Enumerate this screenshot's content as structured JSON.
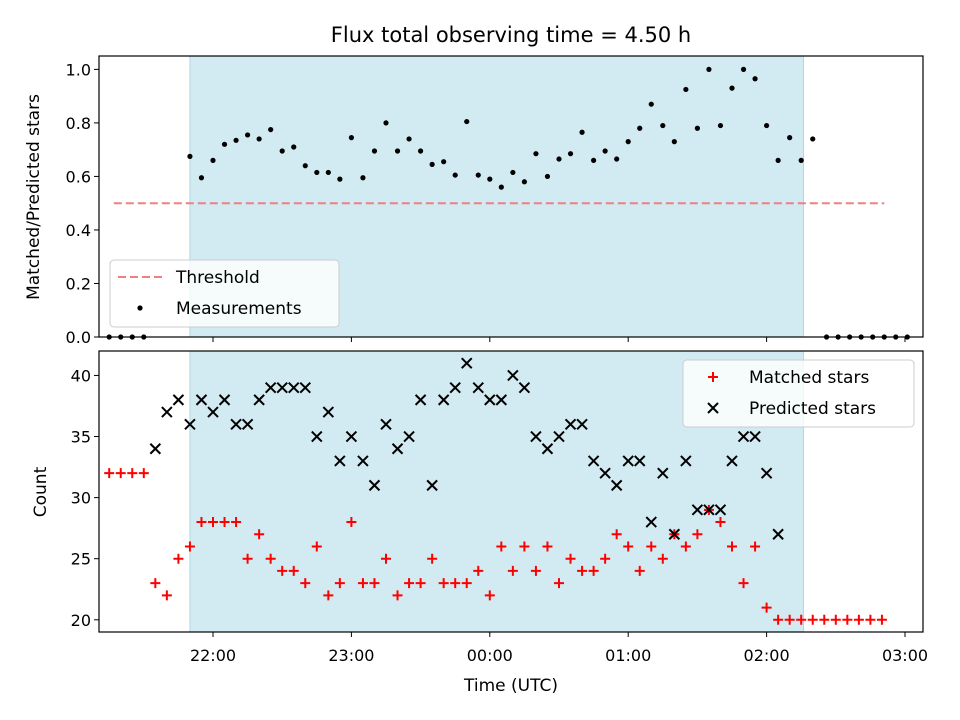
{
  "chart_data": [
    {
      "type": "scatter",
      "title": "Flux total observing time = 4.50 h",
      "xlabel": "",
      "ylabel": "Matched/Predicted stars",
      "ylim": [
        0,
        1.05
      ],
      "yticks": [
        "0.0",
        "0.2",
        "0.4",
        "0.6",
        "0.8",
        "1.0"
      ],
      "threshold": 0.5,
      "threshold_color": "#f08080",
      "shaded_color": "#add8e6",
      "shaded_span": [
        "21:50",
        "02:16"
      ],
      "legend_position": "lower-left",
      "series": [
        {
          "name": "Threshold",
          "style": "dashed-line",
          "color": "#f08080",
          "points": [
            [
              "21:17",
              0.5
            ],
            [
              "02:51",
              0.5
            ]
          ]
        },
        {
          "name": "Measurements",
          "style": "dot",
          "color": "#000000",
          "points": [
            [
              "21:15",
              0.0
            ],
            [
              "21:20",
              0.0
            ],
            [
              "21:25",
              0.0
            ],
            [
              "21:30",
              0.0
            ],
            [
              "21:50",
              0.675
            ],
            [
              "21:55",
              0.595
            ],
            [
              "22:00",
              0.66
            ],
            [
              "22:05",
              0.72
            ],
            [
              "22:10",
              0.735
            ],
            [
              "22:15",
              0.755
            ],
            [
              "22:20",
              0.74
            ],
            [
              "22:25",
              0.775
            ],
            [
              "22:30",
              0.695
            ],
            [
              "22:35",
              0.71
            ],
            [
              "22:40",
              0.64
            ],
            [
              "22:45",
              0.615
            ],
            [
              "22:50",
              0.615
            ],
            [
              "22:55",
              0.59
            ],
            [
              "23:00",
              0.745
            ],
            [
              "23:05",
              0.595
            ],
            [
              "23:10",
              0.695
            ],
            [
              "23:15",
              0.8
            ],
            [
              "23:20",
              0.695
            ],
            [
              "23:25",
              0.74
            ],
            [
              "23:30",
              0.695
            ],
            [
              "23:35",
              0.645
            ],
            [
              "23:40",
              0.655
            ],
            [
              "23:45",
              0.605
            ],
            [
              "23:50",
              0.805
            ],
            [
              "23:55",
              0.605
            ],
            [
              "00:00",
              0.59
            ],
            [
              "00:05",
              0.56
            ],
            [
              "00:10",
              0.615
            ],
            [
              "00:15",
              0.58
            ],
            [
              "00:20",
              0.685
            ],
            [
              "00:25",
              0.6
            ],
            [
              "00:30",
              0.665
            ],
            [
              "00:35",
              0.685
            ],
            [
              "00:40",
              0.765
            ],
            [
              "00:45",
              0.66
            ],
            [
              "00:50",
              0.695
            ],
            [
              "00:55",
              0.665
            ],
            [
              "01:00",
              0.73
            ],
            [
              "01:05",
              0.78
            ],
            [
              "01:10",
              0.87
            ],
            [
              "01:15",
              0.79
            ],
            [
              "01:20",
              0.73
            ],
            [
              "01:25",
              0.925
            ],
            [
              "01:30",
              0.78
            ],
            [
              "01:35",
              1.0
            ],
            [
              "01:40",
              0.79
            ],
            [
              "01:45",
              0.93
            ],
            [
              "01:50",
              1.0
            ],
            [
              "01:55",
              0.965
            ],
            [
              "02:00",
              0.79
            ],
            [
              "02:05",
              0.66
            ],
            [
              "02:10",
              0.745
            ],
            [
              "02:15",
              0.66
            ],
            [
              "02:20",
              0.74
            ],
            [
              "02:26",
              0.0
            ],
            [
              "02:31",
              0.0
            ],
            [
              "02:36",
              0.0
            ],
            [
              "02:41",
              0.0
            ],
            [
              "02:46",
              0.0
            ],
            [
              "02:51",
              0.0
            ],
            [
              "02:56",
              0.0
            ],
            [
              "03:01",
              0.0
            ]
          ]
        }
      ]
    },
    {
      "type": "scatter",
      "title": "",
      "xlabel": "Time (UTC)",
      "ylabel": "Count",
      "ylim": [
        19,
        42
      ],
      "yticks": [
        "20",
        "25",
        "30",
        "35",
        "40"
      ],
      "xticks": [
        "22:00",
        "23:00",
        "00:00",
        "01:00",
        "02:00",
        "03:00"
      ],
      "shaded_color": "#add8e6",
      "shaded_span": [
        "21:50",
        "02:16"
      ],
      "legend_position": "upper-right",
      "series": [
        {
          "name": "Matched stars",
          "style": "plus",
          "color": "#ff0000",
          "points": [
            [
              "21:15",
              32
            ],
            [
              "21:20",
              32
            ],
            [
              "21:25",
              32
            ],
            [
              "21:30",
              32
            ],
            [
              "21:35",
              23
            ],
            [
              "21:40",
              22
            ],
            [
              "21:45",
              25
            ],
            [
              "21:50",
              26
            ],
            [
              "21:55",
              28
            ],
            [
              "22:00",
              28
            ],
            [
              "22:05",
              28
            ],
            [
              "22:10",
              28
            ],
            [
              "22:15",
              25
            ],
            [
              "22:20",
              27
            ],
            [
              "22:25",
              25
            ],
            [
              "22:30",
              24
            ],
            [
              "22:35",
              24
            ],
            [
              "22:40",
              23
            ],
            [
              "22:45",
              26
            ],
            [
              "22:50",
              22
            ],
            [
              "22:55",
              23
            ],
            [
              "23:00",
              28
            ],
            [
              "23:05",
              23
            ],
            [
              "23:10",
              23
            ],
            [
              "23:15",
              25
            ],
            [
              "23:20",
              22
            ],
            [
              "23:25",
              23
            ],
            [
              "23:30",
              23
            ],
            [
              "23:35",
              25
            ],
            [
              "23:40",
              23
            ],
            [
              "23:45",
              23
            ],
            [
              "23:50",
              23
            ],
            [
              "23:55",
              24
            ],
            [
              "00:00",
              22
            ],
            [
              "00:05",
              26
            ],
            [
              "00:10",
              24
            ],
            [
              "00:15",
              26
            ],
            [
              "00:20",
              24
            ],
            [
              "00:25",
              26
            ],
            [
              "00:30",
              23
            ],
            [
              "00:35",
              25
            ],
            [
              "00:40",
              24
            ],
            [
              "00:45",
              24
            ],
            [
              "00:50",
              25
            ],
            [
              "00:55",
              27
            ],
            [
              "01:00",
              26
            ],
            [
              "01:05",
              24
            ],
            [
              "01:10",
              26
            ],
            [
              "01:15",
              25
            ],
            [
              "01:20",
              27
            ],
            [
              "01:25",
              26
            ],
            [
              "01:30",
              27
            ],
            [
              "01:35",
              29
            ],
            [
              "01:40",
              28
            ],
            [
              "01:45",
              26
            ],
            [
              "01:50",
              23
            ],
            [
              "01:55",
              26
            ],
            [
              "02:00",
              21
            ],
            [
              "02:05",
              20
            ],
            [
              "02:10",
              20
            ],
            [
              "02:15",
              20
            ],
            [
              "02:20",
              20
            ],
            [
              "02:25",
              20
            ],
            [
              "02:30",
              20
            ],
            [
              "02:35",
              20
            ],
            [
              "02:40",
              20
            ],
            [
              "02:45",
              20
            ],
            [
              "02:50",
              20
            ]
          ]
        },
        {
          "name": "Predicted stars",
          "style": "x",
          "color": "#000000",
          "points": [
            [
              "21:35",
              34
            ],
            [
              "21:40",
              37
            ],
            [
              "21:45",
              38
            ],
            [
              "21:50",
              36
            ],
            [
              "21:55",
              38
            ],
            [
              "22:00",
              37
            ],
            [
              "22:05",
              38
            ],
            [
              "22:10",
              36
            ],
            [
              "22:15",
              36
            ],
            [
              "22:20",
              38
            ],
            [
              "22:25",
              39
            ],
            [
              "22:30",
              39
            ],
            [
              "22:35",
              39
            ],
            [
              "22:40",
              39
            ],
            [
              "22:45",
              35
            ],
            [
              "22:50",
              37
            ],
            [
              "22:55",
              33
            ],
            [
              "23:00",
              35
            ],
            [
              "23:05",
              33
            ],
            [
              "23:10",
              31
            ],
            [
              "23:15",
              36
            ],
            [
              "23:20",
              34
            ],
            [
              "23:25",
              35
            ],
            [
              "23:30",
              38
            ],
            [
              "23:35",
              31
            ],
            [
              "23:40",
              38
            ],
            [
              "23:45",
              39
            ],
            [
              "23:50",
              41
            ],
            [
              "23:55",
              39
            ],
            [
              "00:00",
              38
            ],
            [
              "00:05",
              38
            ],
            [
              "00:10",
              40
            ],
            [
              "00:15",
              39
            ],
            [
              "00:20",
              35
            ],
            [
              "00:25",
              34
            ],
            [
              "00:30",
              35
            ],
            [
              "00:35",
              36
            ],
            [
              "00:40",
              36
            ],
            [
              "00:45",
              33
            ],
            [
              "00:50",
              32
            ],
            [
              "00:55",
              31
            ],
            [
              "01:00",
              33
            ],
            [
              "01:05",
              33
            ],
            [
              "01:10",
              28
            ],
            [
              "01:15",
              32
            ],
            [
              "01:20",
              27
            ],
            [
              "01:25",
              33
            ],
            [
              "01:30",
              29
            ],
            [
              "01:35",
              29
            ],
            [
              "01:40",
              29
            ],
            [
              "01:45",
              33
            ],
            [
              "01:50",
              35
            ],
            [
              "01:55",
              35
            ],
            [
              "02:00",
              32
            ],
            [
              "02:05",
              27
            ]
          ]
        }
      ]
    }
  ]
}
